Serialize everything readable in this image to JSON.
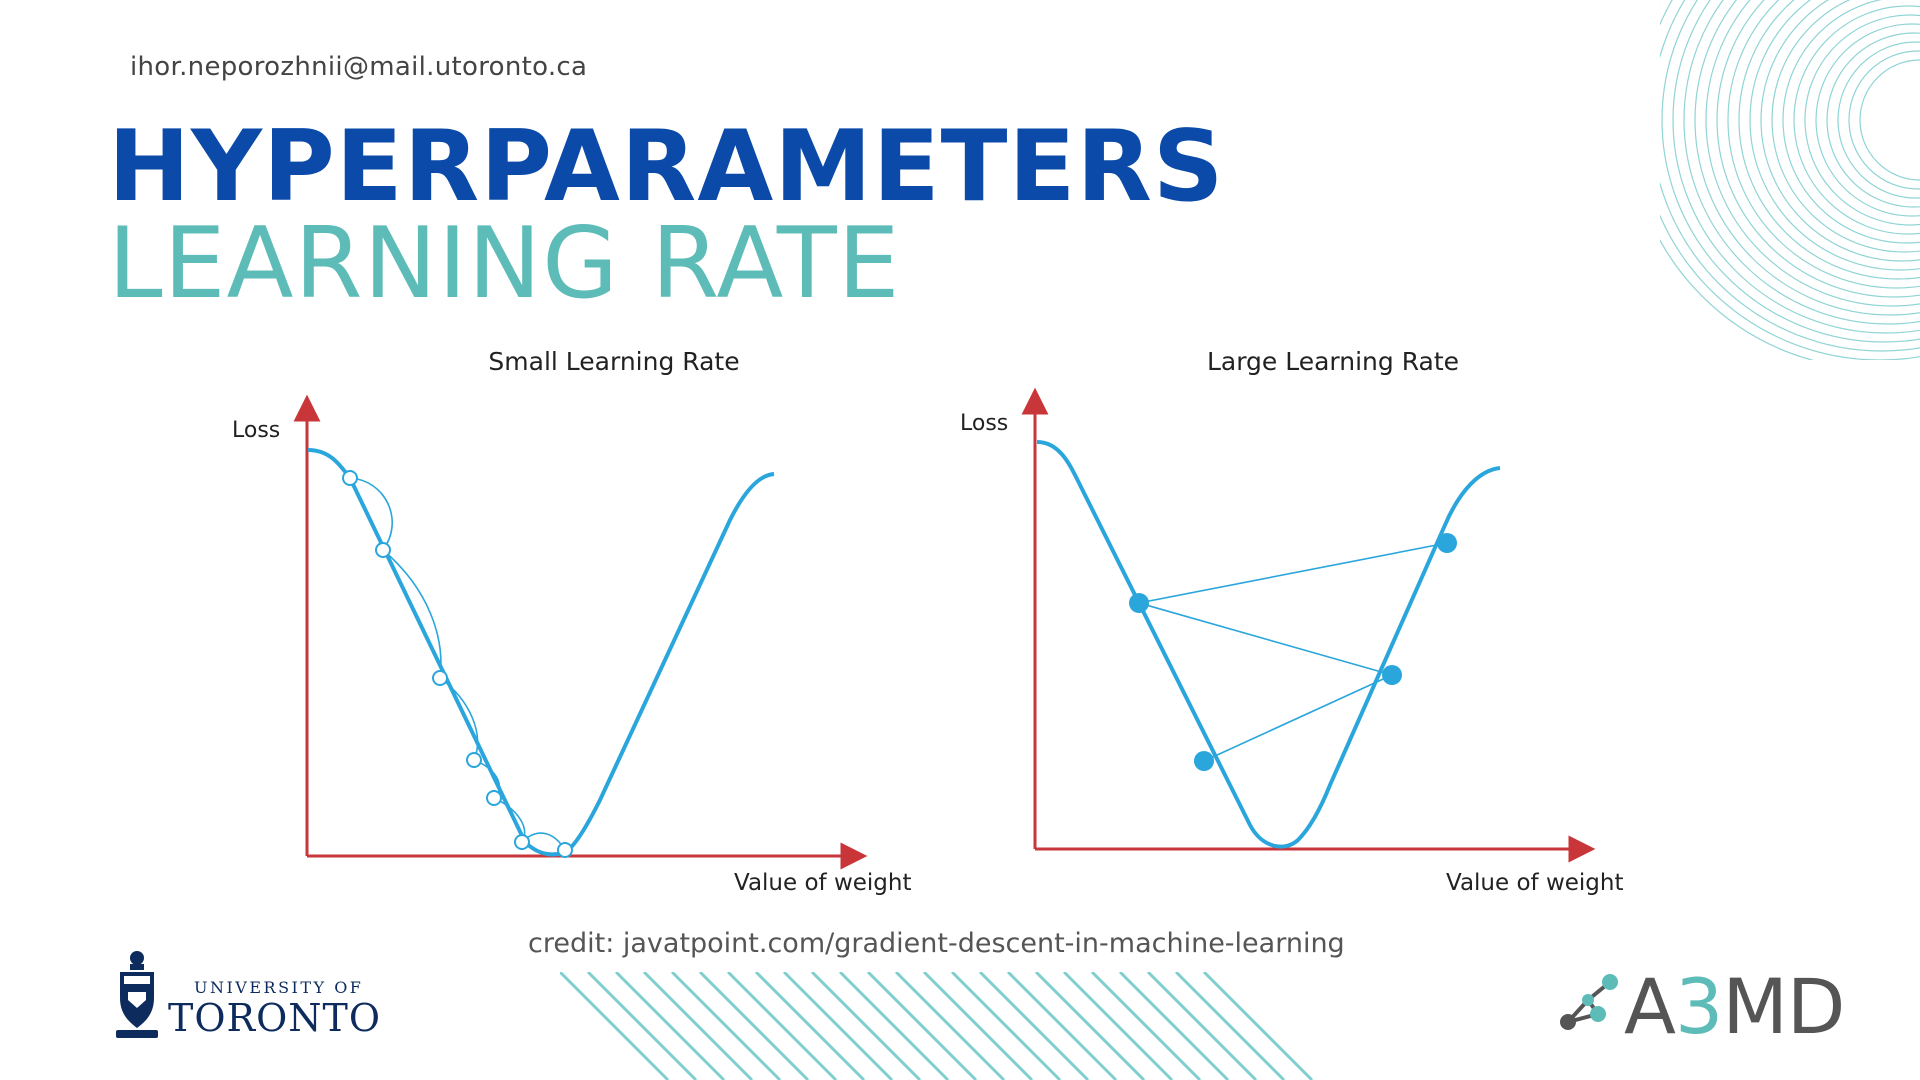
{
  "header": {
    "email": "ihor.neporozhnii@mail.utoronto.ca",
    "title_line1": "HYPERPARAMETERS",
    "title_line2": "LEARNING RATE"
  },
  "diagrams": {
    "small": {
      "title": "Small Learning Rate",
      "y_label": "Loss",
      "x_label": "Value of weight"
    },
    "large": {
      "title": "Large Learning Rate",
      "y_label": "Loss",
      "x_label": "Value of weight"
    }
  },
  "credit": "credit: javatpoint.com/gradient-descent-in-machine-learning",
  "logos": {
    "uoft_line1": "UNIVERSITY OF",
    "uoft_line2": "TORONTO",
    "a3md_prefix": "A",
    "a3md_accent": "3",
    "a3md_suffix": "MD"
  },
  "colors": {
    "title_blue": "#0b4aa8",
    "title_teal": "#5dbcb8",
    "curve_blue": "#2aa6dc",
    "axis_red": "#c8363a",
    "text_dark": "#222222"
  }
}
